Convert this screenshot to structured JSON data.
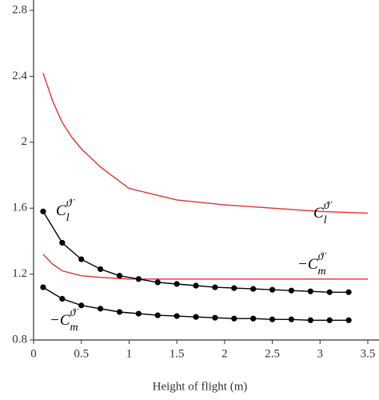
{
  "chart_data": {
    "type": "line",
    "xlabel": "Height of flight (m)",
    "xlim": [
      0,
      3.5
    ],
    "xticks": [
      0,
      0.5,
      1,
      1.5,
      2,
      2.5,
      3,
      3.5
    ],
    "ylim": [
      0.8,
      2.8
    ],
    "yticks": [
      0.8,
      1.2,
      1.6,
      2,
      2.4,
      2.8
    ],
    "series": [
      {
        "color": "#e03030",
        "markers": false,
        "x": [
          0.1,
          0.2,
          0.3,
          0.4,
          0.5,
          0.7,
          1,
          1.5,
          2,
          2.5,
          3,
          3.5
        ],
        "values": [
          2.42,
          2.25,
          2.12,
          2.03,
          1.96,
          1.85,
          1.72,
          1.65,
          1.62,
          1.6,
          1.58,
          1.57
        ]
      },
      {
        "color": "#e03030",
        "markers": false,
        "x": [
          0.1,
          0.2,
          0.3,
          0.5,
          0.7,
          1,
          1.5,
          2,
          2.5,
          3,
          3.5
        ],
        "values": [
          1.32,
          1.26,
          1.22,
          1.19,
          1.18,
          1.17,
          1.17,
          1.17,
          1.17,
          1.17,
          1.17
        ]
      },
      {
        "color": "#000000",
        "markers": true,
        "x": [
          0.1,
          0.3,
          0.5,
          0.7,
          0.9,
          1.1,
          1.3,
          1.5,
          1.7,
          1.9,
          2.1,
          2.3,
          2.5,
          2.7,
          2.9,
          3.1,
          3.3
        ],
        "values": [
          1.58,
          1.39,
          1.29,
          1.23,
          1.19,
          1.17,
          1.15,
          1.14,
          1.13,
          1.12,
          1.115,
          1.11,
          1.105,
          1.1,
          1.095,
          1.09,
          1.09
        ]
      },
      {
        "color": "#000000",
        "markers": true,
        "x": [
          0.1,
          0.3,
          0.5,
          0.7,
          0.9,
          1.1,
          1.3,
          1.5,
          1.7,
          1.9,
          2.1,
          2.3,
          2.5,
          2.7,
          2.9,
          3.1,
          3.3
        ],
        "values": [
          1.12,
          1.05,
          1.01,
          0.99,
          0.97,
          0.96,
          0.95,
          0.945,
          0.94,
          0.935,
          0.93,
          0.93,
          0.925,
          0.925,
          0.92,
          0.92,
          0.92
        ]
      }
    ],
    "annotations": [
      {
        "base": "C",
        "sub": "l",
        "sup": "ϑ̇"
      },
      {
        "base": "−C",
        "sub": "m",
        "sup": "ϑ̇"
      },
      {
        "base": "C",
        "sub": "l",
        "sup": "ϑ̇"
      },
      {
        "base": "−C",
        "sub": "m",
        "sup": "ϑ̇"
      }
    ]
  }
}
